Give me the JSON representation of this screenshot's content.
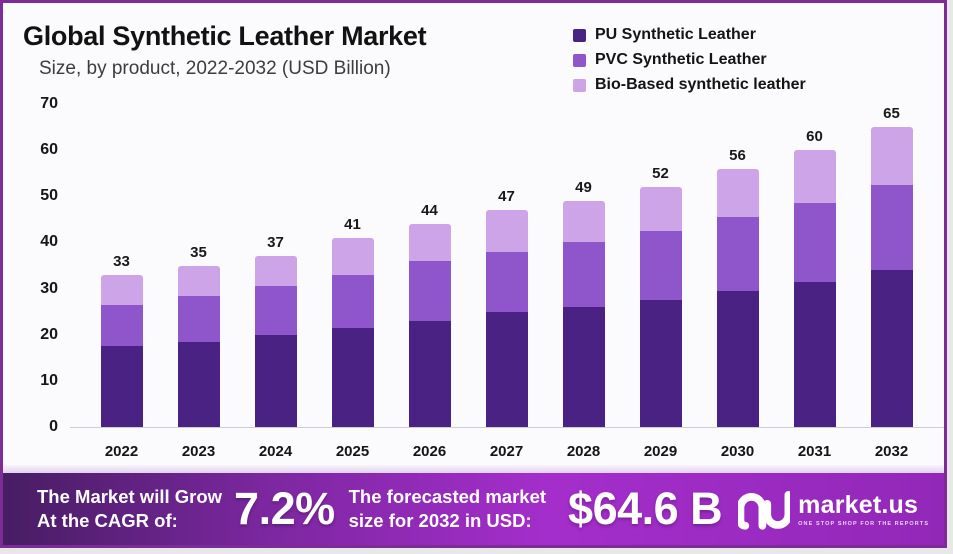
{
  "header": {
    "title": "Global Synthetic Leather Market",
    "subtitle": "Size, by product, 2022-2032 (USD Billion)"
  },
  "chart_data": {
    "type": "bar",
    "stacked": true,
    "title": "Global Synthetic Leather Market",
    "subtitle": "Size, by product, 2022-2032 (USD Billion)",
    "categories": [
      "2022",
      "2023",
      "2024",
      "2025",
      "2026",
      "2027",
      "2028",
      "2029",
      "2030",
      "2031",
      "2032"
    ],
    "series": [
      {
        "name": "PU Synthetic Leather",
        "color": "#4a2284",
        "values": [
          17.5,
          18.5,
          20,
          21.5,
          23,
          25,
          26,
          27.5,
          29.5,
          31.5,
          34
        ]
      },
      {
        "name": "PVC Synthetic Leather",
        "color": "#8f55cb",
        "values": [
          9,
          10,
          10.5,
          11.5,
          13,
          13,
          14,
          15,
          16,
          17,
          18.5
        ]
      },
      {
        "name": "Bio-Based synthetic leather",
        "color": "#cda4e8",
        "values": [
          6.5,
          6.5,
          6.5,
          8,
          8,
          9,
          9,
          9.5,
          10.5,
          11.5,
          12.5
        ]
      }
    ],
    "totals": [
      33,
      35,
      37,
      41,
      44,
      47,
      49,
      52,
      56,
      60,
      65
    ],
    "ylim": [
      0,
      70
    ],
    "yticks": [
      0,
      10,
      20,
      30,
      40,
      50,
      60,
      70
    ],
    "grid": false,
    "legend_position": "top-right"
  },
  "footer": {
    "cagr_label": [
      "The Market will Grow",
      "At the CAGR of:"
    ],
    "cagr_value": "7.2%",
    "forecast_label": [
      "The forecasted market",
      "size for 2032 in USD:"
    ],
    "forecast_value": "$64.6 B",
    "brand_name": "market.us",
    "brand_tagline": "ONE STOP SHOP FOR THE REPORTS"
  },
  "colors": {
    "frame_border": "#7d2b96",
    "background": "#fbfafc",
    "axis_line": "#cfcdd3",
    "banner_gradient": [
      "#471d63",
      "#7c27a0",
      "#a42ecb",
      "#9228b8"
    ]
  }
}
